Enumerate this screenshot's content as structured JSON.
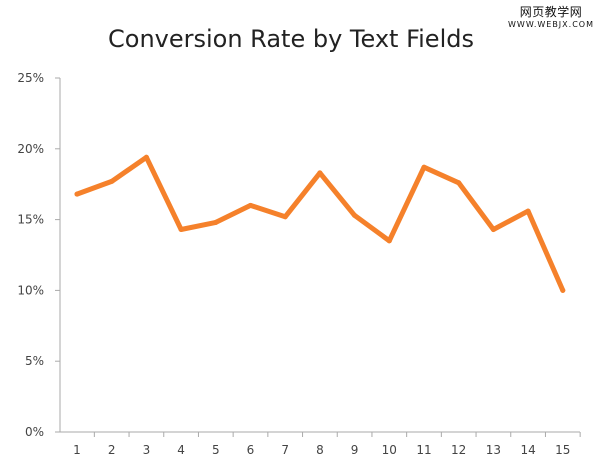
{
  "watermark": {
    "main": "网页教学网",
    "sub": "WWW.WEBJX.COM"
  },
  "colors": {
    "line": "#F5812B",
    "axis": "#aaaaaa",
    "text": "#333333"
  },
  "chart_data": {
    "type": "line",
    "title": "Conversion Rate by Text Fields",
    "xlabel": "",
    "ylabel": "",
    "categories": [
      "1",
      "2",
      "3",
      "4",
      "5",
      "6",
      "7",
      "8",
      "9",
      "10",
      "11",
      "12",
      "13",
      "14",
      "15"
    ],
    "series": [
      {
        "values": [
          16.8,
          17.7,
          19.4,
          14.3,
          14.8,
          16.0,
          15.2,
          18.3,
          15.3,
          13.5,
          18.7,
          17.6,
          14.3,
          15.6,
          10.0
        ]
      }
    ],
    "ylim": [
      0,
      25
    ],
    "yticks": [
      0,
      5,
      10,
      15,
      20,
      25
    ],
    "ytick_labels": [
      "0%",
      "5%",
      "10%",
      "15%",
      "20%",
      "25%"
    ],
    "grid": false,
    "legend": "none"
  }
}
